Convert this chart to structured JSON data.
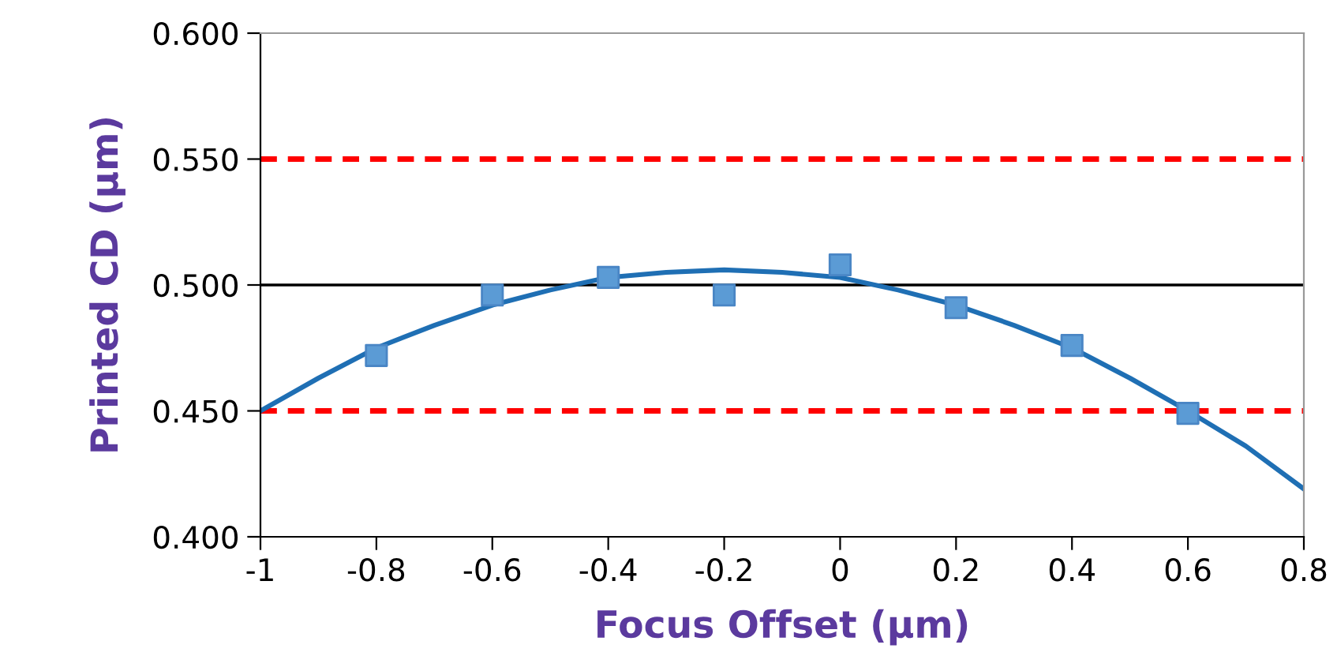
{
  "chart_data": {
    "type": "scatter",
    "xlabel": "Focus Offset (µm)",
    "ylabel": "Printed CD (µm)",
    "xlim": [
      -1,
      0.8
    ],
    "ylim": [
      0.4,
      0.6
    ],
    "xticks": [
      -1,
      -0.8,
      -0.6,
      -0.4,
      -0.2,
      0,
      0.2,
      0.4,
      0.6,
      0.8
    ],
    "yticks": [
      {
        "value": 0.4,
        "label": "0.400"
      },
      {
        "value": 0.45,
        "label": "0.450"
      },
      {
        "value": 0.5,
        "label": "0.500"
      },
      {
        "value": 0.55,
        "label": "0.550"
      },
      {
        "value": 0.6,
        "label": "0.600"
      }
    ],
    "grid": false,
    "legend": false,
    "ref_lines": [
      {
        "axis": "y",
        "value": 0.55,
        "color": "#ff0000",
        "line_style": "dashed"
      },
      {
        "axis": "y",
        "value": 0.45,
        "color": "#ff0000",
        "line_style": "dashed"
      },
      {
        "axis": "y",
        "value": 0.5,
        "color": "#000000",
        "line_style": "solid"
      }
    ],
    "series": [
      {
        "color": "#5b9bd5",
        "marker": "square",
        "x": [
          -0.8,
          -0.6,
          -0.4,
          -0.2,
          0,
          0.2,
          0.4,
          0.6
        ],
        "values": [
          0.472,
          0.496,
          0.503,
          0.496,
          0.508,
          0.491,
          0.476,
          0.449
        ]
      },
      {
        "type": "line",
        "color": "#1f6fb4",
        "marker": "none",
        "x": [
          -1,
          -0.9,
          -0.8,
          -0.7,
          -0.6,
          -0.5,
          -0.4,
          -0.3,
          -0.2,
          -0.1,
          0,
          0.1,
          0.2,
          0.3,
          0.4,
          0.5,
          0.6,
          0.7,
          0.8
        ],
        "values": [
          0.45,
          0.463,
          0.475,
          0.484,
          0.492,
          0.498,
          0.503,
          0.505,
          0.506,
          0.505,
          0.503,
          0.498,
          0.492,
          0.484,
          0.475,
          0.463,
          0.45,
          0.436,
          0.419
        ]
      }
    ]
  }
}
